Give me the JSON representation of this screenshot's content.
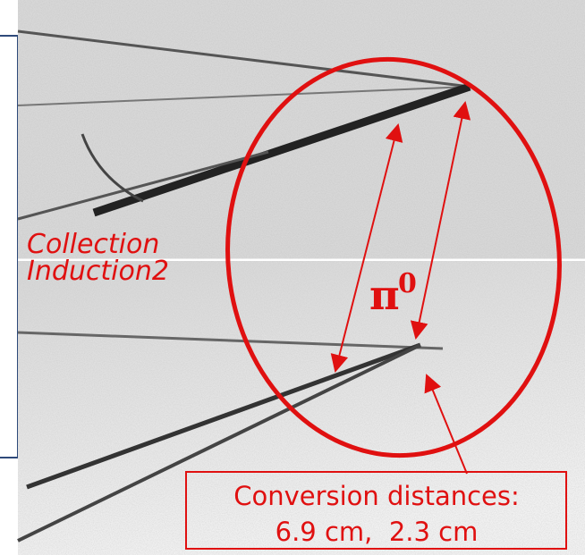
{
  "panels": [
    {
      "label": "Collection"
    },
    {
      "label": "Induction2"
    }
  ],
  "annotation": {
    "particle": "π",
    "superscript": "0"
  },
  "callout": {
    "lines": [
      "Conversion distances:",
      "6.9 cm,  2.3 cm"
    ]
  }
}
